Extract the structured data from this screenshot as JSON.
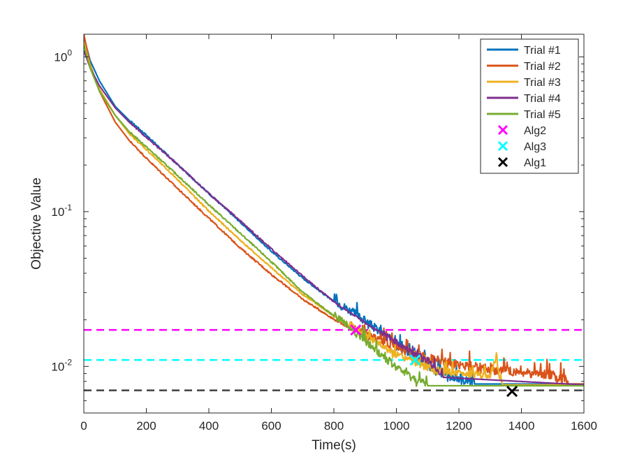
{
  "chart_data": {
    "type": "line",
    "title": "",
    "xlabel": "Time(s)",
    "ylabel": "Objective Value",
    "xlim": [
      0,
      1600
    ],
    "ylim": [
      0.005,
      1.4
    ],
    "yscale": "log",
    "grid": false,
    "legend_position": "top-right",
    "x_ticks": [
      0,
      200,
      400,
      600,
      800,
      1000,
      1200,
      1400,
      1600
    ],
    "x_tick_labels": [
      "0",
      "200",
      "400",
      "600",
      "800",
      "1000",
      "1200",
      "1400",
      "1600"
    ],
    "y_ticks": [
      0.01,
      0.1,
      1
    ],
    "y_tick_labels": [
      {
        "base": "10",
        "exp": "-2"
      },
      {
        "base": "10",
        "exp": "-1"
      },
      {
        "base": "10",
        "exp": "0"
      }
    ],
    "series": [
      {
        "name": "Trial #1",
        "color": "#0072BD",
        "noise_from": 800,
        "noise_amp": 0.22,
        "x": [
          0,
          20,
          50,
          100,
          150,
          200,
          300,
          400,
          500,
          600,
          700,
          800,
          900,
          1000,
          1100,
          1150,
          1200,
          1250,
          1600
        ],
        "y": [
          1.35,
          0.95,
          0.7,
          0.48,
          0.38,
          0.31,
          0.2,
          0.13,
          0.085,
          0.055,
          0.037,
          0.026,
          0.019,
          0.0135,
          0.0098,
          0.0086,
          0.0079,
          0.0077,
          0.0077
        ]
      },
      {
        "name": "Trial #2",
        "color": "#D95319",
        "noise_from": 850,
        "noise_amp": 0.25,
        "x": [
          0,
          20,
          50,
          100,
          150,
          200,
          300,
          400,
          500,
          600,
          700,
          800,
          900,
          1000,
          1100,
          1200,
          1300,
          1400,
          1500,
          1550,
          1600
        ],
        "y": [
          1.4,
          0.9,
          0.6,
          0.38,
          0.28,
          0.22,
          0.14,
          0.09,
          0.058,
          0.039,
          0.027,
          0.02,
          0.0155,
          0.0125,
          0.0108,
          0.0098,
          0.0092,
          0.0088,
          0.0085,
          0.0077,
          0.0077
        ]
      },
      {
        "name": "Trial #3",
        "color": "#EDB120",
        "noise_from": 850,
        "noise_amp": 0.18,
        "x": [
          0,
          20,
          50,
          100,
          150,
          200,
          300,
          400,
          500,
          600,
          700,
          800,
          900,
          1000,
          1100,
          1200,
          1300,
          1320,
          1330,
          1340,
          1600
        ],
        "y": [
          1.25,
          0.88,
          0.62,
          0.42,
          0.31,
          0.25,
          0.16,
          0.1,
          0.065,
          0.043,
          0.029,
          0.021,
          0.0155,
          0.0115,
          0.0095,
          0.0087,
          0.0085,
          0.0113,
          0.0078,
          0.0076,
          0.0076
        ]
      },
      {
        "name": "Trial #4",
        "color": "#7E2F8E",
        "noise_from": 950,
        "noise_amp": 0.15,
        "x": [
          0,
          20,
          50,
          100,
          150,
          200,
          300,
          400,
          500,
          600,
          700,
          800,
          900,
          1000,
          1100,
          1150,
          1600
        ],
        "y": [
          1.1,
          0.85,
          0.65,
          0.47,
          0.37,
          0.3,
          0.2,
          0.13,
          0.087,
          0.057,
          0.038,
          0.026,
          0.019,
          0.014,
          0.0105,
          0.0085,
          0.0076
        ]
      },
      {
        "name": "Trial #5",
        "color": "#77AC30",
        "noise_from": 800,
        "noise_amp": 0.2,
        "x": [
          0,
          20,
          50,
          100,
          150,
          200,
          300,
          400,
          500,
          600,
          700,
          800,
          900,
          950,
          1000,
          1050,
          1080,
          1100,
          1600
        ],
        "y": [
          1.2,
          0.85,
          0.6,
          0.42,
          0.32,
          0.26,
          0.17,
          0.11,
          0.072,
          0.047,
          0.03,
          0.021,
          0.0142,
          0.0115,
          0.0095,
          0.0082,
          0.0076,
          0.0075,
          0.0075
        ]
      }
    ],
    "markers": [
      {
        "name": "Alg2",
        "color": "#FF00FF",
        "x": 870,
        "y": 0.0172,
        "hline": 0.0172
      },
      {
        "name": "Alg3",
        "color": "#00FFFF",
        "x": 1060,
        "y": 0.011,
        "hline": 0.011
      },
      {
        "name": "Alg1",
        "color": "#000000",
        "x": 1370,
        "y": 0.0069,
        "hline": 0.007
      }
    ]
  }
}
